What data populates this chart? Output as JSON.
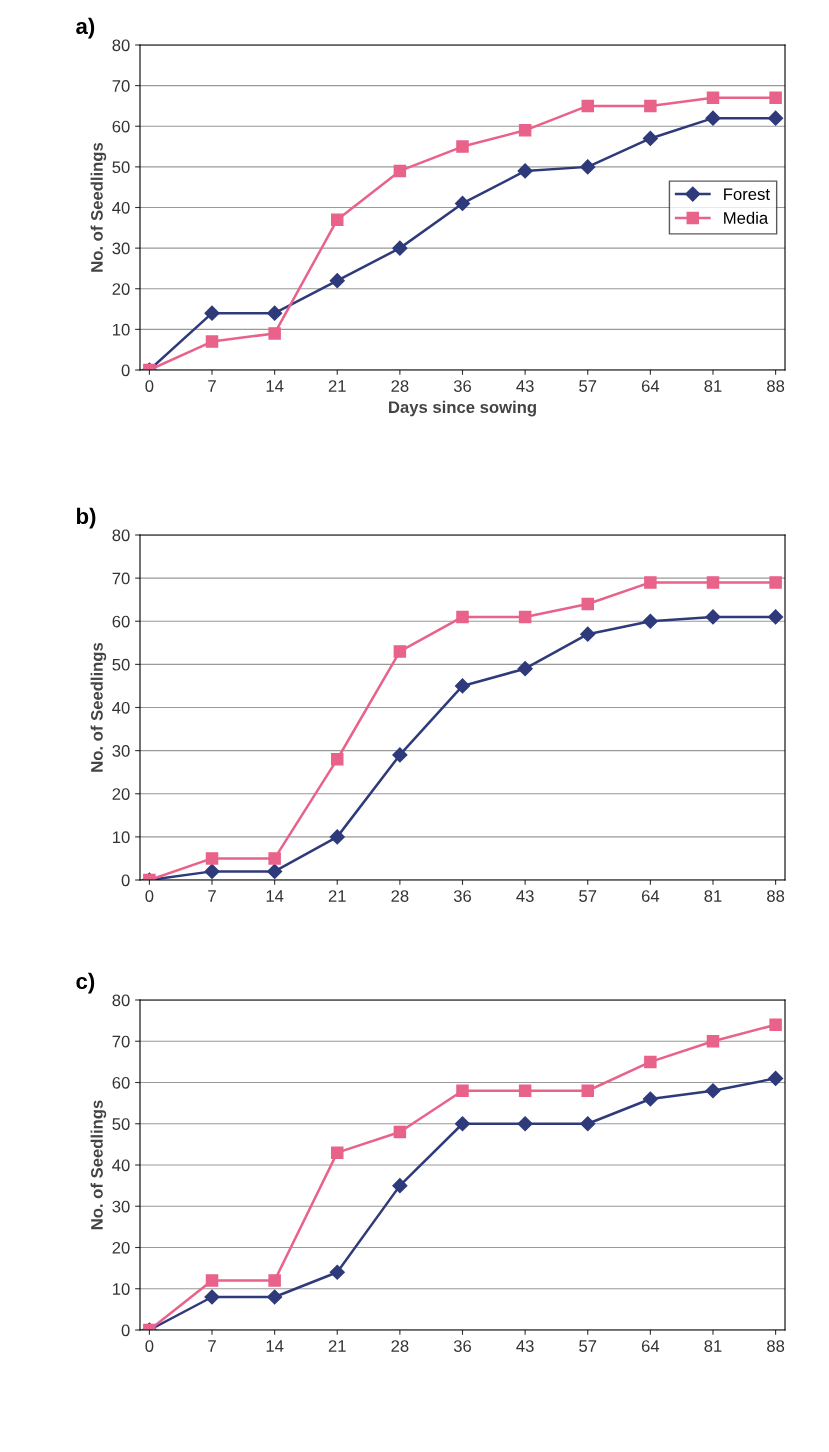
{
  "chart_data": [
    {
      "type": "line",
      "title": "a)",
      "xlabel": "Days since sowing",
      "ylabel": "No. of Seedlings",
      "categories": [
        "0",
        "7",
        "14",
        "21",
        "28",
        "36",
        "43",
        "57",
        "64",
        "81",
        "88"
      ],
      "ylim": [
        0,
        80
      ],
      "yticks": [
        0,
        10,
        20,
        30,
        40,
        50,
        60,
        70,
        80
      ],
      "grid": "y",
      "legend": "center right",
      "series": [
        {
          "name": "Forest",
          "color": "#2e3a7a",
          "marker": "diamond",
          "values": [
            0,
            14,
            14,
            22,
            30,
            41,
            49,
            50,
            57,
            62,
            62
          ]
        },
        {
          "name": "Media",
          "color": "#e8628a",
          "marker": "square",
          "values": [
            0,
            7,
            9,
            37,
            49,
            55,
            59,
            65,
            65,
            67,
            67
          ]
        }
      ]
    },
    {
      "type": "line",
      "title": "b)",
      "ylabel": "No. of Seedlings",
      "categories": [
        "0",
        "7",
        "14",
        "21",
        "28",
        "36",
        "43",
        "57",
        "64",
        "81",
        "88"
      ],
      "ylim": [
        0,
        80
      ],
      "yticks": [
        0,
        10,
        20,
        30,
        40,
        50,
        60,
        70,
        80
      ],
      "grid": "y",
      "series": [
        {
          "color": "#2e3a7a",
          "marker": "diamond",
          "values": [
            0,
            2,
            2,
            10,
            29,
            45,
            49,
            57,
            60,
            61,
            61
          ]
        },
        {
          "color": "#e8628a",
          "marker": "square",
          "values": [
            0,
            5,
            5,
            28,
            53,
            61,
            61,
            64,
            69,
            69,
            69
          ]
        }
      ]
    },
    {
      "type": "line",
      "title": "c)",
      "ylabel": "No. of Seedlings",
      "categories": [
        "0",
        "7",
        "14",
        "21",
        "28",
        "36",
        "43",
        "57",
        "64",
        "81",
        "88"
      ],
      "ylim": [
        0,
        80
      ],
      "yticks": [
        0,
        10,
        20,
        30,
        40,
        50,
        60,
        70,
        80
      ],
      "grid": "y",
      "series": [
        {
          "color": "#2e3a7a",
          "marker": "diamond",
          "values": [
            0,
            8,
            8,
            14,
            35,
            50,
            50,
            50,
            56,
            58,
            61
          ]
        },
        {
          "color": "#e8628a",
          "marker": "square",
          "values": [
            0,
            12,
            12,
            43,
            48,
            58,
            58,
            58,
            65,
            70,
            74
          ]
        }
      ]
    }
  ]
}
